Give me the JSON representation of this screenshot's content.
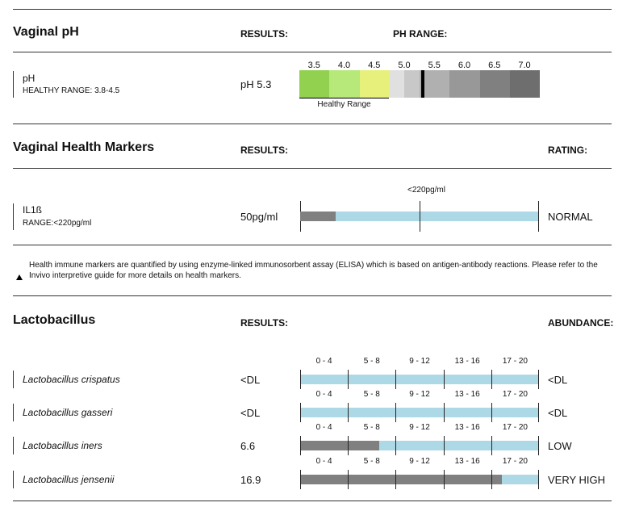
{
  "ph_section": {
    "title": "Vaginal pH",
    "results_header": "RESULTS:",
    "range_header": "PH RANGE:",
    "marker": {
      "name": "pH",
      "healthy_range": "HEALTHY RANGE: 3.8-4.5",
      "result": "pH 5.3",
      "value": 5.3
    },
    "scale_ticks": [
      "3.5",
      "4.0",
      "4.5",
      "5.0",
      "5.5",
      "6.0",
      "6.5",
      "7.0"
    ],
    "scale_colors": [
      "#92d050",
      "#b6e87a",
      "#e6f07a",
      "#e0e0e0",
      "#c8c8c8",
      "#b0b0b0",
      "#989898",
      "#808080",
      "#6e6e6e"
    ],
    "healthy_label": "Healthy Range"
  },
  "health_markers": {
    "title": "Vaginal Health Markers",
    "results_header": "RESULTS:",
    "rating_header": "RATING:",
    "marker": {
      "name": "IL1ß",
      "range": "RANGE:<220pg/ml",
      "result": "50pg/ml",
      "threshold_label": "<220pg/ml",
      "rating": "NORMAL",
      "fill_fraction": 0.15,
      "threshold_fraction": 0.5
    },
    "note_icon": "triangle-up-icon",
    "note": "Health immune markers are quantified by using enzyme-linked immunosorbent assay (ELISA) which is based on antigen-antibody reactions. Please refer to the Invivo interpretive guide for more details on health markers."
  },
  "lactobacillus": {
    "title": "Lactobacillus",
    "results_header": "RESULTS:",
    "abundance_header": "ABUNDANCE:",
    "range_labels": [
      "0 - 4",
      "5 - 8",
      "9 - 12",
      "13 - 16",
      "17 - 20"
    ],
    "rows": [
      {
        "name": "Lactobacillus crispatus",
        "result": "<DL",
        "abundance": "<DL",
        "value": 0
      },
      {
        "name": "Lactobacillus gasseri",
        "result": "<DL",
        "abundance": "<DL",
        "value": 0
      },
      {
        "name": "Lactobacillus iners",
        "result": "6.6",
        "abundance": "LOW",
        "value": 6.6
      },
      {
        "name": "Lactobacillus jensenii",
        "result": "16.9",
        "abundance": "VERY HIGH",
        "value": 16.9
      }
    ],
    "scale_max": 20,
    "colors": {
      "fill": "#808080",
      "track": "#add8e6"
    }
  }
}
